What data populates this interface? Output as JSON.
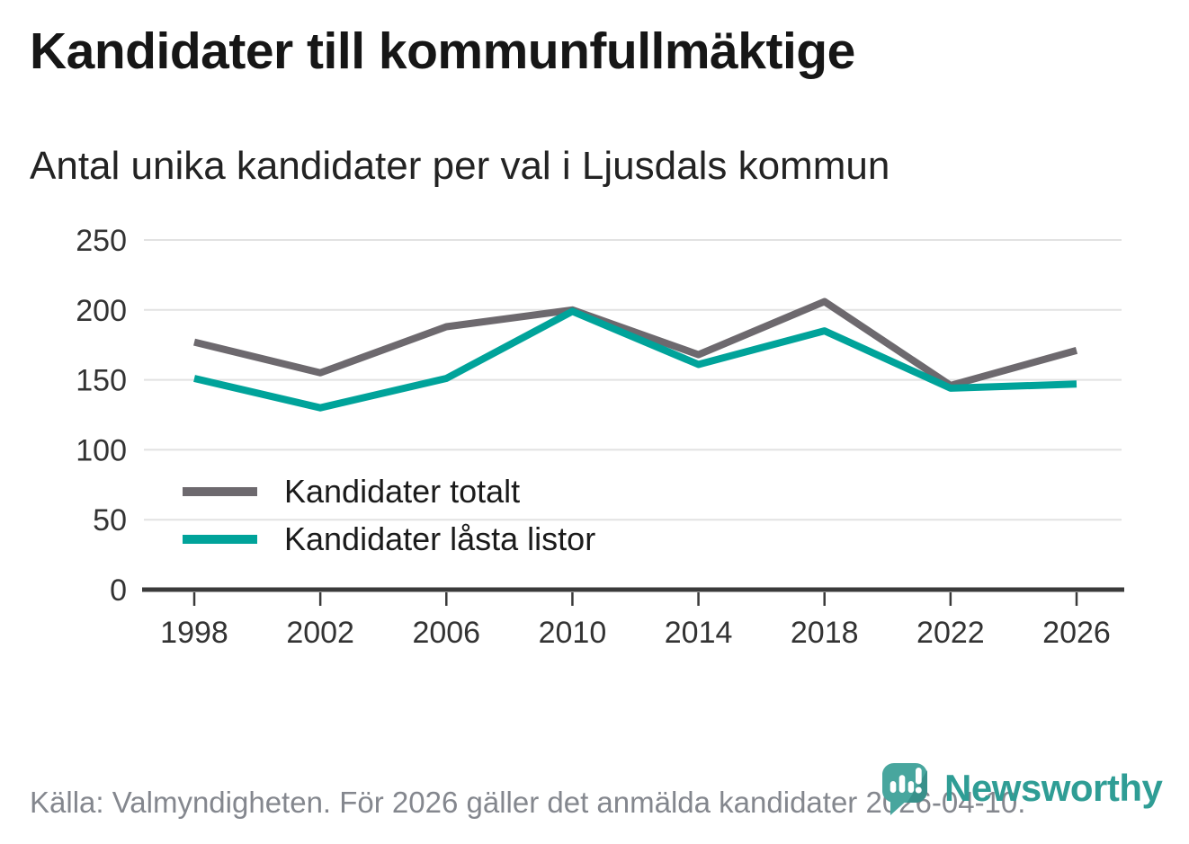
{
  "header": {
    "title": "Kandidater till kommunfullmäktige",
    "subtitle": "Antal unika kandidater per val i Ljusdals kommun"
  },
  "chart_data": {
    "type": "line",
    "title": "Kandidater till kommunfullmäktige",
    "subtitle": "Antal unika kandidater per val i Ljusdals kommun",
    "x": [
      1998,
      2002,
      2006,
      2010,
      2014,
      2018,
      2022,
      2026
    ],
    "series": [
      {
        "name": "Kandidater totalt",
        "color": "#6d696e",
        "values": [
          177,
          155,
          188,
          200,
          168,
          206,
          146,
          171
        ]
      },
      {
        "name": "Kandidater låsta listor",
        "color": "#00a39a",
        "values": [
          151,
          130,
          151,
          199,
          161,
          185,
          144,
          147
        ]
      }
    ],
    "xlabel": "",
    "ylabel": "",
    "ylim": [
      0,
      250
    ],
    "yticks": [
      0,
      50,
      100,
      150,
      200,
      250
    ],
    "grid": "horizontal",
    "legend_position": "inside-bottom-left"
  },
  "legend": {
    "items": [
      {
        "label": "Kandidater totalt",
        "color": "#6d696e"
      },
      {
        "label": "Kandidater låsta listor",
        "color": "#00a39a"
      }
    ]
  },
  "footer": {
    "source_text": "Källa: Valmyndigheten. För 2026 gäller det anmälda kandidater 2026-04-10.",
    "brand": "Newsworthy"
  },
  "colors": {
    "total_line": "#6d696e",
    "locked_line": "#00a39a",
    "grid": "#e2e2e2",
    "axis": "#3a3a3a",
    "tick_label": "#333333",
    "footer_text": "#84878e",
    "brand_teal": "#2f9d95",
    "pin_fill": "#48a69e",
    "pin_shade": "#38908a"
  }
}
